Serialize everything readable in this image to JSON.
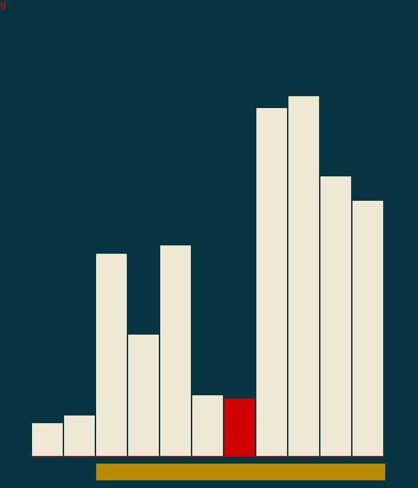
{
  "game": {
    "score": "9",
    "colors": {
      "background": "#073642",
      "bar": "#eee8d5",
      "highlight": "#d30000",
      "progress": "#b58900",
      "text": "#dc0000"
    },
    "bars": {
      "values": [
        47,
        58,
        290,
        174,
        302,
        87,
        82,
        499,
        516,
        401,
        366
      ],
      "max": 550,
      "highlight_index": 6
    },
    "progress": {
      "fraction": 1.0
    }
  }
}
